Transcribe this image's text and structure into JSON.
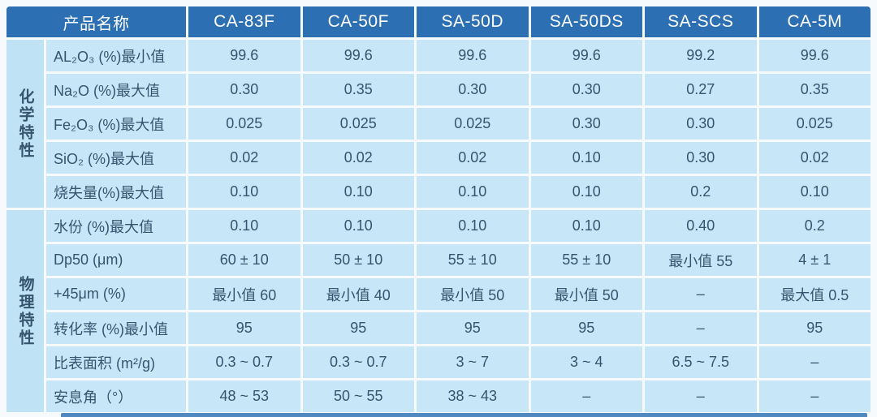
{
  "table": {
    "corner_header": "产品名称",
    "products": [
      "CA-83F",
      "CA-50F",
      "SA-50D",
      "SA-50DS",
      "SA-SCS",
      "CA-5M"
    ],
    "groups": [
      {
        "name": "化学特性",
        "rows": [
          {
            "label": "AL₂O₃ (%)最小值",
            "values": [
              "99.6",
              "99.6",
              "99.6",
              "99.6",
              "99.2",
              "99.6"
            ]
          },
          {
            "label": "Na₂O (%)最大值",
            "values": [
              "0.30",
              "0.35",
              "0.30",
              "0.30",
              "0.27",
              "0.35"
            ]
          },
          {
            "label": "Fe₂O₃ (%)最大值",
            "values": [
              "0.025",
              "0.025",
              "0.025",
              "0.30",
              "0.30",
              "0.025"
            ]
          },
          {
            "label": "SiO₂ (%)最大值",
            "values": [
              "0.02",
              "0.02",
              "0.02",
              "0.10",
              "0.30",
              "0.02"
            ]
          },
          {
            "label": "烧失量(%)最大值",
            "values": [
              "0.10",
              "0.10",
              "0.10",
              "0.10",
              "0.2",
              "0.10"
            ]
          }
        ]
      },
      {
        "name": "物理特性",
        "rows": [
          {
            "label": "水份 (%)最大值",
            "values": [
              "0.10",
              "0.10",
              "0.10",
              "0.10",
              "0.40",
              "0.2"
            ]
          },
          {
            "label": "Dp50 (μm)",
            "values": [
              "60 ± 10",
              "50 ± 10",
              "55 ± 10",
              "55 ± 10",
              "最小值 55",
              "4 ± 1"
            ]
          },
          {
            "label": "+45μm (%)",
            "values": [
              "最小值 60",
              "最小值 40",
              "最小值 50",
              "最小值 50",
              "–",
              "最大值 0.5"
            ]
          },
          {
            "label": "转化率 (%)最小值",
            "values": [
              "95",
              "95",
              "95",
              "95",
              "–",
              "95"
            ]
          },
          {
            "label": "比表面积 (m²/g)",
            "values": [
              "0.3 ~ 0.7",
              "0.3 ~ 0.7",
              "3 ~ 7",
              "3 ~ 4",
              "6.5 ~ 7.5",
              "–"
            ]
          },
          {
            "label": "安息角（°）",
            "values": [
              "48 ~ 53",
              "50 ~ 55",
              "38 ~ 43",
              "–",
              "–",
              "–"
            ]
          }
        ]
      }
    ],
    "colors": {
      "header_bg": "#2D6FB3",
      "header_text": "#FFFFFF",
      "cell_bg": "#C7E6F8",
      "side_bg": "#BFE2F5",
      "text": "#35556E",
      "next_table_strip": "#4F89BF"
    }
  },
  "chart_data": {
    "type": "table",
    "title": "产品名称 product specification table",
    "columns": [
      "产品名称",
      "CA-83F",
      "CA-50F",
      "SA-50D",
      "SA-50DS",
      "SA-SCS",
      "CA-5M"
    ],
    "row_groups": [
      {
        "group": "化学特性",
        "rows": [
          [
            "AL₂O₃ (%)最小值",
            "99.6",
            "99.6",
            "99.6",
            "99.6",
            "99.2",
            "99.6"
          ],
          [
            "Na₂O (%)最大值",
            "0.30",
            "0.35",
            "0.30",
            "0.30",
            "0.27",
            "0.35"
          ],
          [
            "Fe₂O₃ (%)最大值",
            "0.025",
            "0.025",
            "0.025",
            "0.30",
            "0.30",
            "0.025"
          ],
          [
            "SiO₂ (%)最大值",
            "0.02",
            "0.02",
            "0.02",
            "0.10",
            "0.30",
            "0.02"
          ],
          [
            "烧失量(%)最大值",
            "0.10",
            "0.10",
            "0.10",
            "0.10",
            "0.2",
            "0.10"
          ]
        ]
      },
      {
        "group": "物理特性",
        "rows": [
          [
            "水份 (%)最大值",
            "0.10",
            "0.10",
            "0.10",
            "0.10",
            "0.40",
            "0.2"
          ],
          [
            "Dp50 (μm)",
            "60 ± 10",
            "50 ± 10",
            "55 ± 10",
            "55 ± 10",
            "最小值 55",
            "4 ± 1"
          ],
          [
            "+45μm (%)",
            "最小值 60",
            "最小值 40",
            "最小值 50",
            "最小值 50",
            "–",
            "最大值 0.5"
          ],
          [
            "转化率 (%)最小值",
            "95",
            "95",
            "95",
            "95",
            "–",
            "95"
          ],
          [
            "比表面积 (m²/g)",
            "0.3 ~ 0.7",
            "0.3 ~ 0.7",
            "3 ~ 7",
            "3 ~ 4",
            "6.5 ~ 7.5",
            "–"
          ],
          [
            "安息角（°）",
            "48 ~ 53",
            "50 ~ 55",
            "38 ~ 43",
            "–",
            "–",
            "–"
          ]
        ]
      }
    ]
  }
}
